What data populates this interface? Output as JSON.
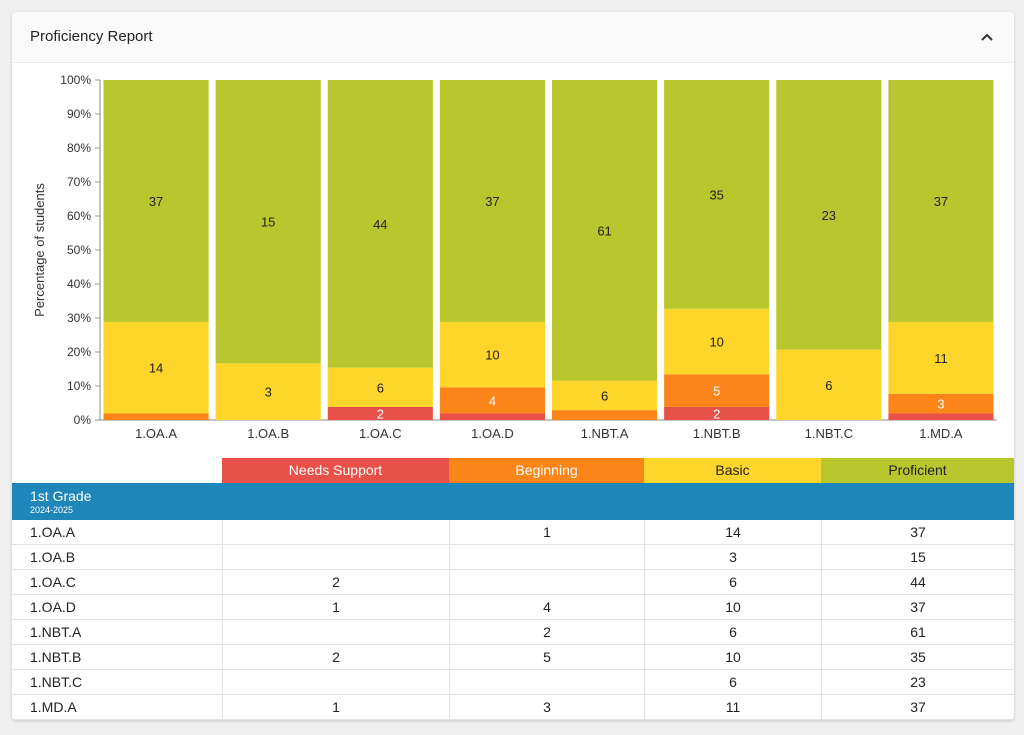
{
  "header": {
    "title": "Proficiency Report"
  },
  "colors": {
    "needs_support": "#e8504a",
    "beginning": "#fb8519",
    "basic": "#fed52a",
    "proficient": "#b7c72d",
    "grade_bar": "#1f86b9"
  },
  "legend": [
    "Needs Support",
    "Beginning",
    "Basic",
    "Proficient"
  ],
  "grade": {
    "title": "1st Grade",
    "year": "2024-2025"
  },
  "chart_data": {
    "type": "bar",
    "stacked": true,
    "normalized": true,
    "categories": [
      "1.OA.A",
      "1.OA.B",
      "1.OA.C",
      "1.OA.D",
      "1.NBT.A",
      "1.NBT.B",
      "1.NBT.C",
      "1.MD.A"
    ],
    "series": [
      {
        "name": "Needs Support",
        "values": [
          0,
          0,
          2,
          1,
          0,
          2,
          0,
          1
        ]
      },
      {
        "name": "Beginning",
        "values": [
          1,
          0,
          0,
          4,
          2,
          5,
          0,
          3
        ]
      },
      {
        "name": "Basic",
        "values": [
          14,
          3,
          6,
          10,
          6,
          10,
          6,
          11
        ]
      },
      {
        "name": "Proficient",
        "values": [
          37,
          15,
          44,
          37,
          61,
          35,
          23,
          37
        ]
      }
    ],
    "data_labels": [
      [
        "",
        "",
        "2",
        "",
        "",
        "2",
        "",
        ""
      ],
      [
        "",
        "",
        "",
        "4",
        "",
        "5",
        "",
        "3"
      ],
      [
        "14",
        "3",
        "6",
        "10",
        "6",
        "10",
        "6",
        "11"
      ],
      [
        "37",
        "15",
        "44",
        "37",
        "61",
        "35",
        "23",
        "37"
      ]
    ],
    "ylabel": "Percentage of students",
    "xlabel": "",
    "yticks": [
      "0%",
      "10%",
      "20%",
      "30%",
      "40%",
      "50%",
      "60%",
      "70%",
      "80%",
      "90%",
      "100%"
    ],
    "ylim": [
      0,
      100
    ]
  },
  "table": {
    "rows": [
      {
        "label": "1.OA.A",
        "cells": [
          "",
          "1",
          "14",
          "37"
        ]
      },
      {
        "label": "1.OA.B",
        "cells": [
          "",
          "",
          "3",
          "15"
        ]
      },
      {
        "label": "1.OA.C",
        "cells": [
          "2",
          "",
          "6",
          "44"
        ]
      },
      {
        "label": "1.OA.D",
        "cells": [
          "1",
          "4",
          "10",
          "37"
        ]
      },
      {
        "label": "1.NBT.A",
        "cells": [
          "",
          "2",
          "6",
          "61"
        ]
      },
      {
        "label": "1.NBT.B",
        "cells": [
          "2",
          "5",
          "10",
          "35"
        ]
      },
      {
        "label": "1.NBT.C",
        "cells": [
          "",
          "",
          "6",
          "23"
        ]
      },
      {
        "label": "1.MD.A",
        "cells": [
          "1",
          "3",
          "11",
          "37"
        ]
      }
    ]
  }
}
